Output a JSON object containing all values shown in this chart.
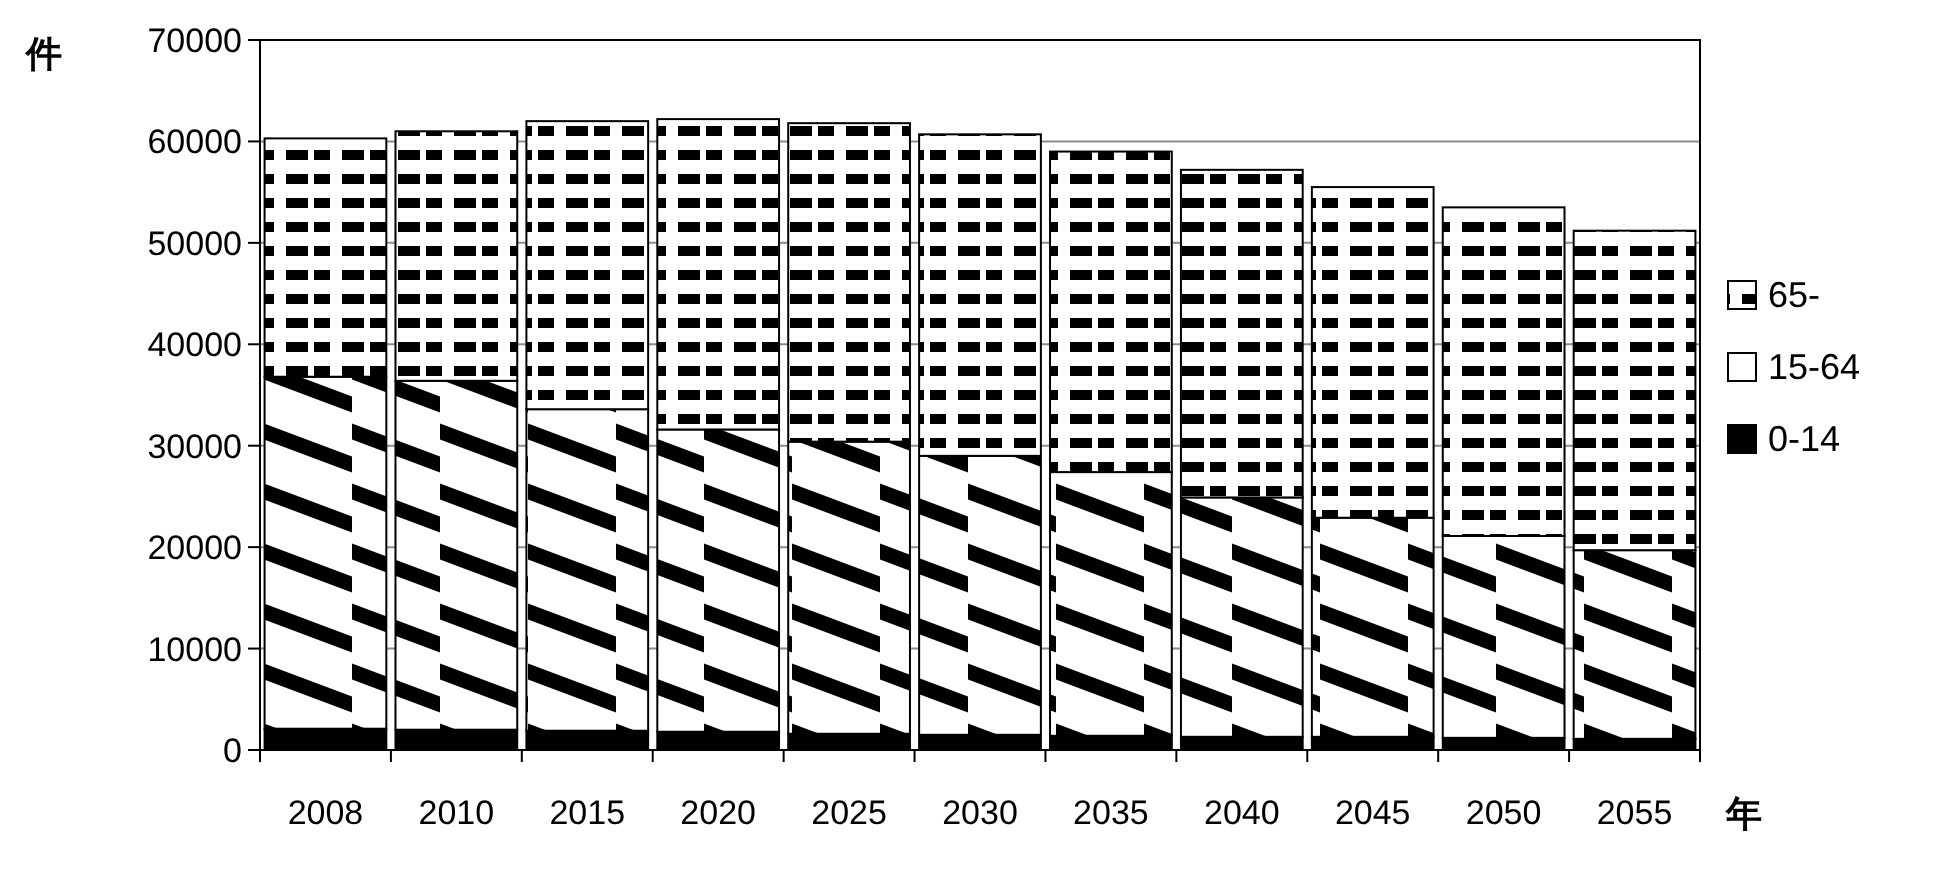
{
  "chart_data": {
    "type": "bar",
    "stacked": true,
    "ylabel": "件",
    "xlabel": "年",
    "categories": [
      "2008",
      "2010",
      "2015",
      "2020",
      "2025",
      "2030",
      "2035",
      "2040",
      "2045",
      "2050",
      "2055"
    ],
    "series": [
      {
        "name": "0-14",
        "color": "#000000",
        "values": [
          2100,
          2000,
          1900,
          1800,
          1600,
          1500,
          1400,
          1300,
          1300,
          1200,
          1100
        ]
      },
      {
        "name": "15-64",
        "color": "#000000",
        "values": [
          34700,
          34400,
          31700,
          29800,
          28800,
          27500,
          26000,
          23600,
          21600,
          19900,
          18600
        ]
      },
      {
        "name": "65-",
        "color": "#000000",
        "values": [
          23500,
          24600,
          28400,
          30600,
          31400,
          31700,
          31600,
          32300,
          32600,
          32400,
          31500
        ]
      }
    ],
    "ylim": [
      0,
      70000
    ],
    "yticks": [
      0,
      10000,
      20000,
      30000,
      40000,
      50000,
      60000,
      70000
    ],
    "grid": "y",
    "legend": "right"
  }
}
